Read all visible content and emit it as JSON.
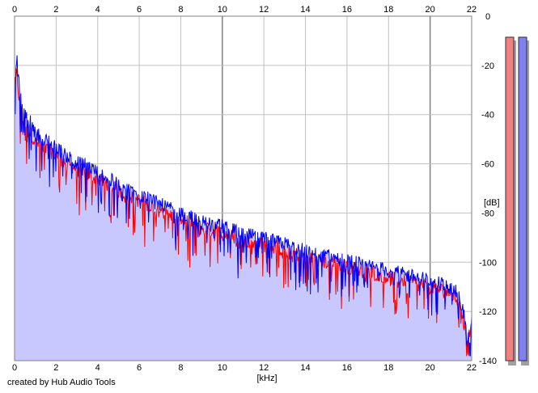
{
  "chart_data": {
    "type": "line",
    "xlabel": "[kHz]",
    "ylabel": "[dB]",
    "xlim": [
      0,
      22
    ],
    "ylim": [
      -140,
      0
    ],
    "x_ticks": [
      0,
      2,
      4,
      6,
      8,
      10,
      12,
      14,
      16,
      18,
      20,
      22
    ],
    "y_ticks": [
      0,
      -20,
      -40,
      -60,
      -80,
      -100,
      -120,
      -140
    ],
    "x_tick_labels": [
      "0",
      "2",
      "4",
      "6",
      "8",
      "10",
      "12",
      "14",
      "16",
      "18",
      "20",
      "22"
    ],
    "y_tick_labels": [
      "0",
      "-20",
      "-40",
      "-60",
      "-80",
      "-100",
      "-120",
      "-140"
    ],
    "grid": true,
    "series": [
      {
        "color": "#ff0000",
        "x": [
          0,
          0.1,
          0.2,
          0.3,
          0.4,
          0.6,
          0.8,
          1,
          1.5,
          2,
          2.5,
          3,
          3.5,
          4,
          5,
          6,
          7,
          8,
          9,
          10,
          11,
          12,
          13,
          14,
          15,
          16,
          17,
          18,
          19,
          20,
          20.5,
          21,
          21.3,
          21.6,
          21.8,
          22
        ],
        "values": [
          -30,
          -23,
          -32,
          -37,
          -40,
          -46,
          -48,
          -51,
          -54,
          -56,
          -60,
          -62,
          -64,
          -66,
          -71,
          -75,
          -79,
          -83,
          -86,
          -88,
          -91,
          -93,
          -95,
          -98,
          -100,
          -102,
          -104,
          -106,
          -108,
          -110,
          -111,
          -113,
          -115,
          -124,
          -130,
          -127
        ]
      },
      {
        "color": "#0000ff",
        "x": [
          0,
          0.1,
          0.2,
          0.3,
          0.4,
          0.6,
          0.8,
          1,
          1.5,
          2,
          2.5,
          3,
          3.5,
          4,
          5,
          6,
          7,
          8,
          9,
          10,
          11,
          12,
          13,
          14,
          15,
          16,
          17,
          18,
          19,
          20,
          20.5,
          21,
          21.3,
          21.6,
          21.8,
          22
        ],
        "values": [
          -26,
          -18,
          -28,
          -34,
          -37,
          -43,
          -45,
          -49,
          -52,
          -55,
          -58,
          -61,
          -62,
          -65,
          -70,
          -74,
          -78,
          -82,
          -85,
          -87,
          -90,
          -92,
          -94,
          -97,
          -99,
          -101,
          -103,
          -105,
          -107,
          -109,
          -110,
          -112,
          -114,
          -121,
          -134,
          -126
        ]
      }
    ],
    "fill_color": "#c8c8ff",
    "meters": [
      {
        "color": "#f08080"
      },
      {
        "color": "#8080f0"
      }
    ]
  },
  "footer": {
    "credit": "created by Hub Audio Tools"
  }
}
